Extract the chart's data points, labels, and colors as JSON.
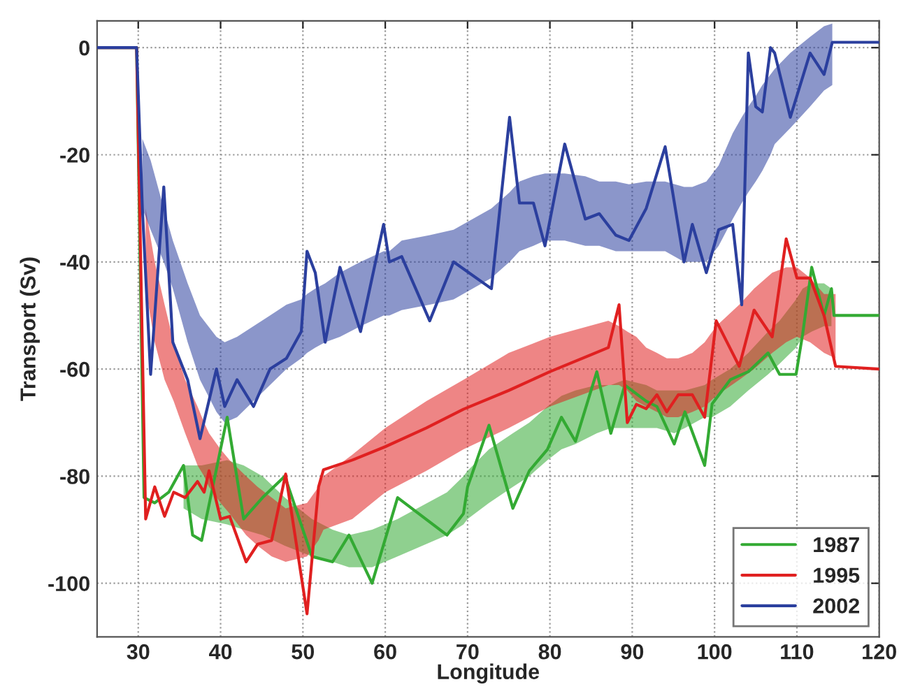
{
  "chart_data": {
    "type": "line",
    "xlabel": "Longitude",
    "ylabel": "Transport (Sv)",
    "xlim": [
      25,
      120
    ],
    "ylim": [
      -110,
      5
    ],
    "xticks": [
      30,
      40,
      50,
      60,
      70,
      80,
      90,
      100,
      110,
      120
    ],
    "yticks": [
      0,
      -20,
      -40,
      -60,
      -80,
      -100
    ],
    "grid": true,
    "legend": "bottom right",
    "line_style": "solid",
    "series": [
      {
        "name": "1987",
        "color": "#33aa33",
        "x": [
          25,
          29.8,
          30.7,
          32.0,
          33.7,
          35.5,
          36.6,
          37.7,
          40.8,
          42.8,
          45.1,
          47.8,
          51.1,
          53.6,
          55.6,
          58.4,
          61.5,
          67.5,
          69.5,
          70,
          72.6,
          75.5,
          77.5,
          79.7,
          81.4,
          83.1,
          85.7,
          87.4,
          89.1,
          91.7,
          93,
          95.1,
          96.4,
          98.8,
          99.7,
          101.9,
          104.1,
          106.5,
          107.9,
          109.9,
          110.7,
          111.8,
          113.3,
          114.2,
          114.5,
          120
        ],
        "values": [
          0,
          0,
          -84,
          -85,
          -83,
          -78,
          -91,
          -92,
          -69,
          -88,
          -84,
          -80,
          -95,
          -96,
          -91,
          -100,
          -84,
          -91,
          -87,
          -82,
          -70.5,
          -86,
          -79,
          -75,
          -69,
          -73.5,
          -60.5,
          -72,
          -63,
          -66,
          -67,
          -74,
          -68,
          -78,
          -66.5,
          -62,
          -60.5,
          -57,
          -61,
          -61,
          -53.5,
          -41,
          -50,
          -45,
          -50,
          -50
        ],
        "lower": [
          null,
          null,
          null,
          null,
          null,
          -86,
          -87,
          -88,
          -89,
          -90,
          -91,
          -93,
          -95,
          -96,
          -97,
          -97,
          -95,
          -91,
          -89,
          -88,
          -85,
          -82,
          -80,
          -77,
          -75,
          -74,
          -72,
          -71,
          -71,
          -71,
          -71,
          -72,
          -71,
          -69,
          -69,
          -67,
          -64,
          -61,
          -59,
          -56,
          -54,
          -53,
          -52,
          -52,
          null,
          null
        ],
        "upper": [
          null,
          null,
          null,
          null,
          null,
          -78,
          -78,
          -78,
          -77,
          -78,
          -80,
          -84,
          -88,
          -90,
          -91,
          -90,
          -88,
          -83,
          -80,
          -79,
          -75,
          -72,
          -70,
          -67,
          -65,
          -64,
          -63,
          -63,
          -62,
          -63,
          -64,
          -64,
          -64,
          -63,
          -62,
          -60,
          -57,
          -53,
          -51,
          -47,
          -45,
          -44,
          -44,
          -45,
          null,
          null
        ]
      },
      {
        "name": "1995",
        "color": "#e02020",
        "x": [
          25,
          29.8,
          30.9,
          32.0,
          33.2,
          34.3,
          35.7,
          37.2,
          38.0,
          38.6,
          40.0,
          41.1,
          43.1,
          44.5,
          46.2,
          47.9,
          50.5,
          51.9,
          52.5,
          56,
          60,
          65,
          69.5,
          75,
          80,
          87.1,
          88.4,
          89.4,
          90.5,
          91.7,
          93.0,
          94.2,
          95.6,
          97.3,
          98.8,
          100.2,
          103.0,
          104.8,
          107.0,
          108.7,
          110.0,
          111.6,
          113.3,
          114.7,
          120
        ],
        "values": [
          0,
          0,
          -88,
          -82,
          -87.5,
          -83,
          -84,
          -81,
          -83,
          -79,
          -88,
          -87.5,
          -96,
          -92.7,
          -92,
          -79.6,
          -105.7,
          -82,
          -78.8,
          -77,
          -74.5,
          -71,
          -67.5,
          -64,
          -60.5,
          -56,
          -48,
          -70,
          -66.6,
          -67.4,
          -64.8,
          -68,
          -64.8,
          -64.8,
          -69,
          -51,
          -59.5,
          -49,
          -54,
          -35.7,
          -43,
          -43,
          -50,
          -59.5,
          -60
        ],
        "lower": [
          null,
          null,
          -45,
          -55,
          -62,
          -66,
          -72,
          -78,
          -80,
          -82,
          -85,
          -87,
          -91,
          -93,
          -95,
          -96,
          -95,
          -92,
          -90,
          -88,
          -83,
          -79,
          -75,
          -71,
          -67,
          -63,
          -63,
          -64,
          -66,
          -67,
          -68,
          -69,
          -69,
          -68,
          -67,
          -65,
          -62,
          -60,
          -57,
          -55,
          -54,
          -55,
          -57,
          -58,
          null
        ],
        "upper": [
          null,
          null,
          -30,
          -40,
          -48,
          -55,
          -62,
          -67,
          -70,
          -72,
          -75,
          -77,
          -80,
          -82,
          -84,
          -86,
          -85,
          -82,
          -80,
          -76,
          -71,
          -66,
          -62,
          -57,
          -54,
          -51,
          -52,
          -53,
          -54,
          -56,
          -57,
          -58,
          -58,
          -57,
          -55,
          -52,
          -48,
          -45,
          -42,
          -41,
          -41,
          -43,
          -46,
          -46,
          null
        ]
      },
      {
        "name": "2002",
        "color": "#2b3f9e",
        "x": [
          25,
          29.8,
          30.5,
          31.5,
          33.1,
          34.2,
          36,
          37.5,
          39.5,
          40.5,
          42,
          44,
          46,
          48,
          49.8,
          50.5,
          51.5,
          52.7,
          54.5,
          57,
          59.8,
          60.5,
          62,
          65.4,
          68.3,
          72.9,
          75.1,
          76.3,
          78,
          79.4,
          81.8,
          84.3,
          86,
          88,
          89.6,
          91.7,
          94,
          96.3,
          97.3,
          99,
          100.5,
          102.2,
          103.3,
          104.1,
          105,
          105.8,
          106.8,
          107.3,
          109.2,
          111.6,
          113.3,
          114.3,
          120
        ],
        "values": [
          0,
          0,
          -30,
          -61,
          -26,
          -55,
          -62,
          -73,
          -60,
          -67,
          -62,
          -67,
          -60,
          -58,
          -53,
          -38,
          -42,
          -55,
          -41,
          -53,
          -33,
          -40,
          -39,
          -51,
          -40,
          -45,
          -13,
          -29,
          -29,
          -37,
          -18,
          -32,
          -31,
          -35,
          -36,
          -30,
          -18.5,
          -40,
          -33,
          -42,
          -34,
          -33,
          -48,
          -1,
          -11,
          -12,
          0,
          -1,
          -13,
          -1,
          -5,
          1,
          1
        ],
        "lower": [
          null,
          null,
          -30,
          -34,
          -40,
          -45,
          -55,
          -62,
          -68,
          -70,
          -69,
          -66,
          -63,
          -60,
          -58,
          -57,
          -56,
          -55,
          -54,
          -52,
          -50,
          -50,
          -49,
          -48,
          -47,
          -43,
          -40,
          -38,
          -37,
          -36,
          -36,
          -37,
          -37,
          -38,
          -38,
          -38,
          -38,
          -40,
          -40,
          -40,
          -37,
          -32,
          -29,
          -27,
          -25,
          -23,
          -20,
          -18,
          -15,
          -11,
          -8,
          -7,
          null
        ],
        "upper": [
          null,
          null,
          -17,
          -21,
          -30,
          -36,
          -44,
          -50,
          -54,
          -55,
          -54,
          -52,
          -50,
          -48,
          -47,
          -46,
          -45,
          -44,
          -42,
          -40,
          -38,
          -38,
          -36,
          -35,
          -34,
          -30,
          -27,
          -25,
          -24,
          -23.5,
          -23.5,
          -24,
          -25,
          -25,
          -25.5,
          -25,
          -25,
          -26,
          -26,
          -25,
          -22,
          -16,
          -13,
          -11,
          -9,
          -7,
          -5,
          -4,
          -1,
          2,
          4,
          4.5,
          null
        ]
      }
    ]
  }
}
